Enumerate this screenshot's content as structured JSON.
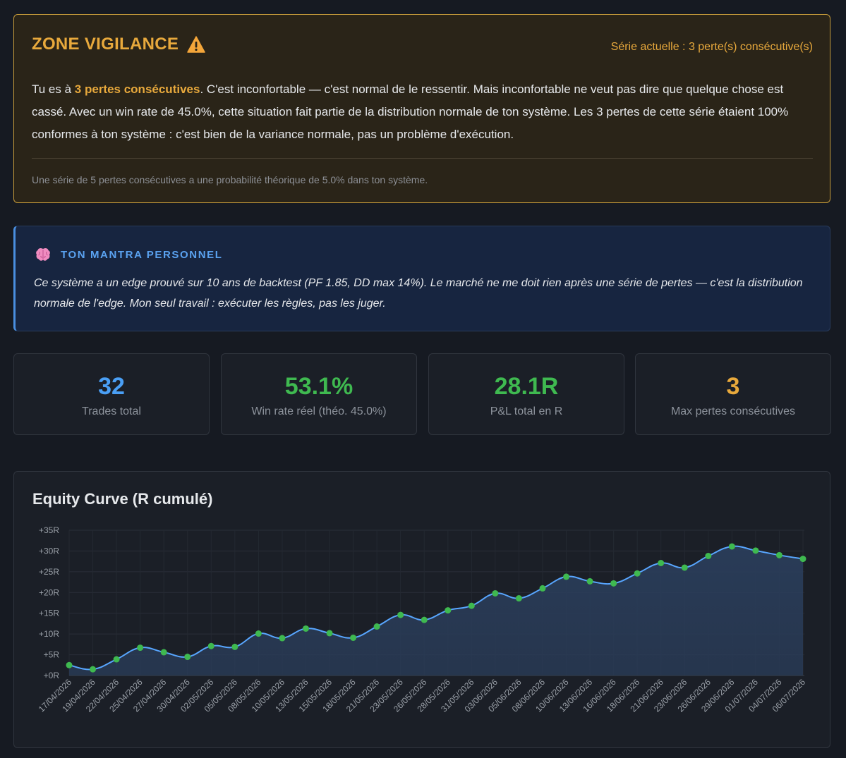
{
  "alert": {
    "title": "ZONE VIGILANCE",
    "icon": "warning-icon",
    "series": "Série actuelle : 3 perte(s) consécutive(s)",
    "body_pre": "Tu es à ",
    "body_hl": "3 pertes consécutives",
    "body_post": ". C'est inconfortable — c'est normal de le ressentir. Mais inconfortable ne veut pas dire que quelque chose est cassé. Avec un win rate de 45.0%, cette situation fait partie de la distribution normale de ton système. Les 3 pertes de cette série étaient 100% conformes à ton système : c'est bien de la variance normale, pas un problème d'exécution.",
    "note": "Une série de 5 pertes consécutives a une probabilité théorique de 5.0% dans ton système.",
    "accent": "#e8a93c"
  },
  "mantra": {
    "icon": "brain-icon",
    "title": "TON MANTRA PERSONNEL",
    "text": "Ce système a un edge prouvé sur 10 ans de backtest (PF 1.85, DD max 14%). Le marché ne me doit rien après une série de pertes — c'est la distribution normale de l'edge. Mon seul travail : exécuter les règles, pas les juger."
  },
  "stats": [
    {
      "value": "32",
      "label": "Trades total",
      "color": "#4a9ff5"
    },
    {
      "value": "53.1%",
      "label": "Win rate réel (théo. 45.0%)",
      "color": "#3fb950"
    },
    {
      "value": "28.1R",
      "label": "P&L total en R",
      "color": "#3fb950"
    },
    {
      "value": "3",
      "label": "Max pertes consécutives",
      "color": "#e8a93c"
    }
  ],
  "chart_data": {
    "type": "area",
    "title": "Equity Curve (R cumulé)",
    "x": [
      "17/04/2026",
      "19/04/2026",
      "22/04/2026",
      "25/04/2026",
      "27/04/2026",
      "30/04/2026",
      "02/05/2026",
      "05/05/2026",
      "08/05/2026",
      "10/05/2026",
      "13/05/2026",
      "15/05/2026",
      "18/05/2026",
      "21/05/2026",
      "23/05/2026",
      "26/05/2026",
      "28/05/2026",
      "31/05/2026",
      "03/06/2026",
      "05/06/2026",
      "08/06/2026",
      "10/06/2026",
      "13/06/2026",
      "16/06/2026",
      "18/06/2026",
      "21/06/2026",
      "23/06/2026",
      "26/06/2026",
      "29/06/2026",
      "01/07/2026",
      "04/07/2026",
      "06/07/2026"
    ],
    "series": [
      {
        "values": [
          2.5,
          1.5,
          3.9,
          6.7,
          5.6,
          4.5,
          7.1,
          6.9,
          10.1,
          9.0,
          11.3,
          10.2,
          9.1,
          11.8,
          14.6,
          13.4,
          15.7,
          16.8,
          19.8,
          18.6,
          21.0,
          23.8,
          22.7,
          22.2,
          24.6,
          27.1,
          26.0,
          28.8,
          31.1,
          30.1,
          29.0,
          28.1
        ]
      }
    ],
    "yticks": [
      "+0R",
      "+5R",
      "+10R",
      "+15R",
      "+20R",
      "+25R",
      "+30R",
      "+35R"
    ],
    "ylim": [
      0,
      35
    ],
    "line_color": "#58a6ff",
    "point_color": "#3fb950",
    "fill_color": "#2a3d5a",
    "grid": true,
    "xlabel": "",
    "ylabel": ""
  }
}
